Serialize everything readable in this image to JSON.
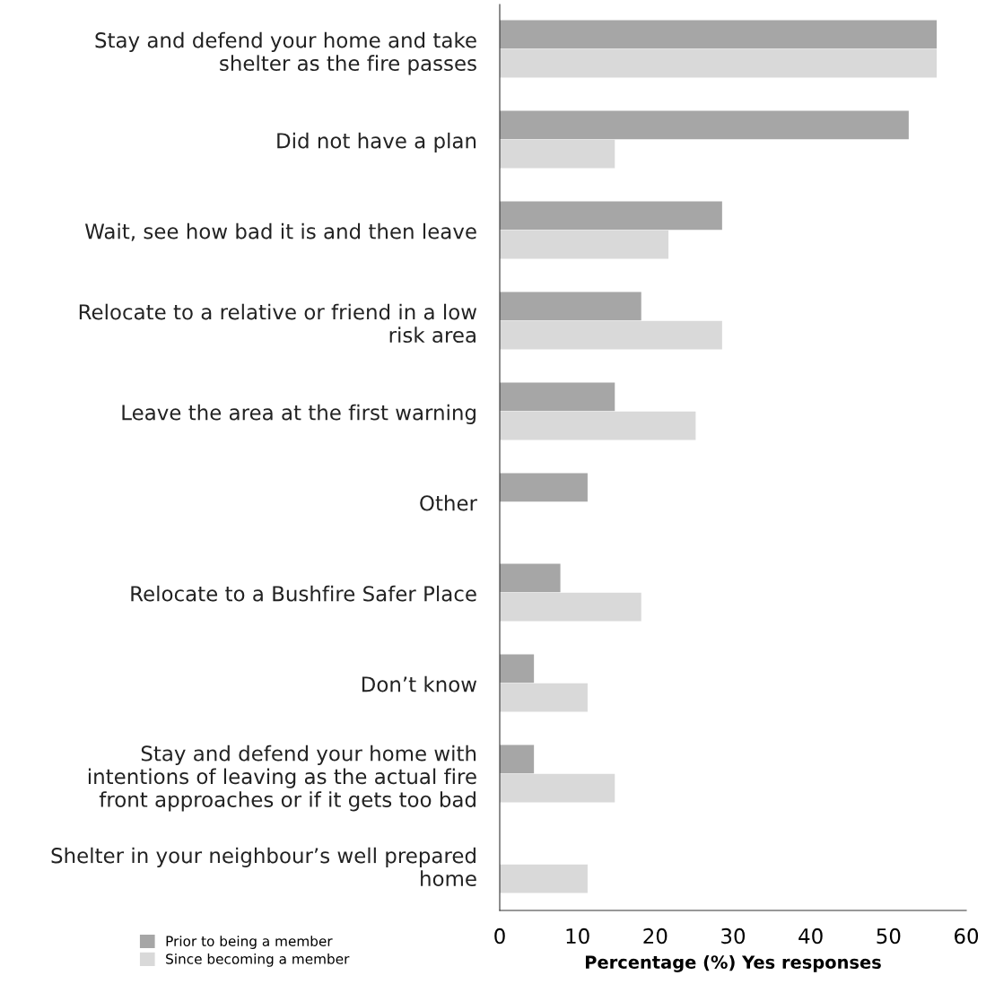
{
  "chart_data": {
    "type": "bar",
    "orientation": "horizontal",
    "categories": [
      "Stay and defend your home and take\nshelter as the fire passes",
      "Did not have a plan",
      "Wait, see how bad it is and then leave",
      "Relocate to a relative or friend in a low\nrisk area",
      "Leave the area at the first warning",
      "Other",
      "Relocate to a Bushfire Safer Place",
      "Don’t know",
      "Stay and defend your home with\nintentions of leaving as the actual fire\nfront approaches or if it gets too bad",
      "Shelter in your neighbour’s well prepared\nhome"
    ],
    "series": [
      {
        "name": "Prior to being a member",
        "color": "#a6a6a6",
        "values": [
          56.2,
          52.6,
          28.6,
          18.2,
          14.8,
          11.3,
          7.8,
          4.4,
          4.4,
          null
        ]
      },
      {
        "name": "Since becoming a member",
        "color": "#d9d9d9",
        "values": [
          56.2,
          14.8,
          21.7,
          28.6,
          25.2,
          null,
          18.2,
          11.3,
          14.8,
          11.3
        ]
      }
    ],
    "xlabel": "Percentage (%) Yes responses",
    "xlim": [
      0,
      60
    ],
    "xticks": [
      0,
      10,
      20,
      30,
      40,
      50,
      60
    ],
    "grid": false,
    "legend": "bottom left"
  }
}
